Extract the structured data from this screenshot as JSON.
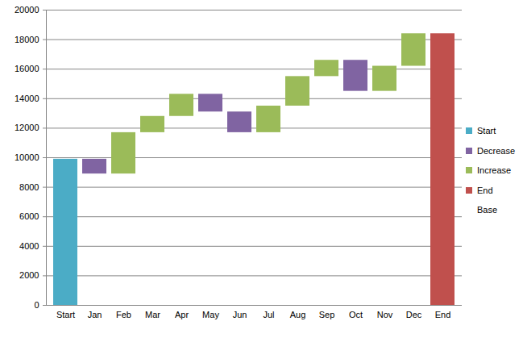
{
  "chart_data": {
    "type": "waterfall",
    "categories": [
      "Start",
      "Jan",
      "Feb",
      "Mar",
      "Apr",
      "May",
      "Jun",
      "Jul",
      "Aug",
      "Sep",
      "Oct",
      "Nov",
      "Dec",
      "End"
    ],
    "stacked": true,
    "series": [
      {
        "name": "Start",
        "color": "#4bacc6",
        "values": [
          9900,
          null,
          null,
          null,
          null,
          null,
          null,
          null,
          null,
          null,
          null,
          null,
          null,
          null
        ]
      },
      {
        "name": "Decrease",
        "color": "#8064a2",
        "values": [
          null,
          1000,
          null,
          null,
          null,
          1200,
          1400,
          null,
          null,
          null,
          2100,
          null,
          null,
          null
        ]
      },
      {
        "name": "Increase",
        "color": "#9bbb59",
        "values": [
          null,
          null,
          2800,
          1100,
          1500,
          null,
          null,
          1800,
          2000,
          1100,
          null,
          1700,
          2200,
          null
        ]
      },
      {
        "name": "End",
        "color": "#c0504d",
        "values": [
          null,
          null,
          null,
          null,
          null,
          null,
          null,
          null,
          null,
          null,
          null,
          null,
          null,
          18400
        ]
      },
      {
        "name": "Base",
        "color": "none",
        "values": [
          0,
          8900,
          8900,
          11700,
          12800,
          13100,
          11700,
          11700,
          13500,
          15500,
          14500,
          14500,
          16200,
          0
        ]
      }
    ],
    "ylim": [
      0,
      20000
    ],
    "yticks": [
      0,
      2000,
      4000,
      6000,
      8000,
      10000,
      12000,
      14000,
      16000,
      18000,
      20000
    ],
    "grid": true,
    "legend": "right"
  }
}
